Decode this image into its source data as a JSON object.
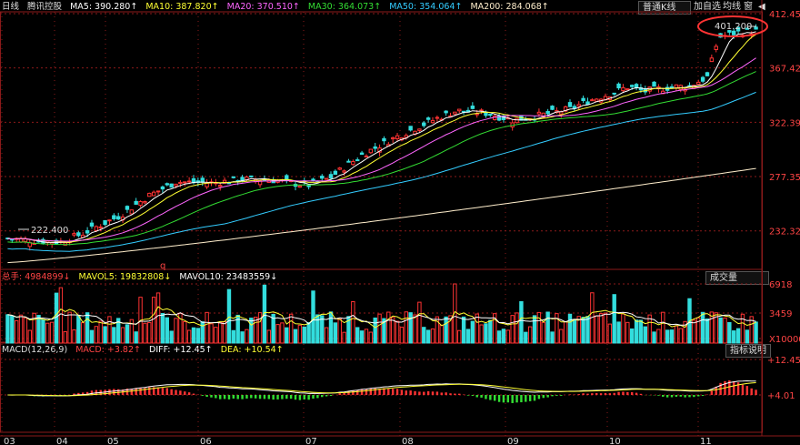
{
  "toolbar": {
    "period": "日线",
    "stock": "腾讯控股",
    "chart_type_button": "普通K线",
    "add_button": "加自选",
    "ma_button": "均线",
    "window_button": "窗",
    "nav_arrow": "◀"
  },
  "main_indicators": [
    {
      "label": "MA5: 390.280↑",
      "color": "#ffffff"
    },
    {
      "label": "MA10: 387.820↑",
      "color": "#ffff33"
    },
    {
      "label": "MA20: 370.510↑",
      "color": "#ff66ff"
    },
    {
      "label": "MA30: 364.073↑",
      "color": "#33dd33"
    },
    {
      "label": "MA50: 354.064↑",
      "color": "#33ccff"
    },
    {
      "label": "MA200: 284.068↑",
      "color": "#ffeecc"
    }
  ],
  "volume_panel": {
    "indicators": [
      {
        "label": "总手: 4984899↓",
        "color": "#ff4444"
      },
      {
        "label": "MAVOL5: 19832808↓",
        "color": "#ffff33"
      },
      {
        "label": "MAVOL10: 23483559↓",
        "color": "#ffffff"
      }
    ],
    "dropdown": "成交量",
    "axis_labels": [
      "6918",
      "3459",
      "X10000"
    ]
  },
  "macd_panel": {
    "indicators": [
      {
        "label": "MACD(12,26,9)",
        "color": "#dddddd"
      },
      {
        "label": "MACD: +3.82↑",
        "color": "#ff4444"
      },
      {
        "label": "DIFF: +12.45↑",
        "color": "#ffffff"
      },
      {
        "label": "DEA: +10.54↑",
        "color": "#ffff33"
      }
    ],
    "help_button": "指标说明",
    "axis_labels": [
      "+12.45",
      "+4.01"
    ]
  },
  "annotations": {
    "high_label": "401.200",
    "low_label": "222.400",
    "q_marker": "q"
  },
  "chart_data": {
    "type": "candlestick",
    "price_axis": {
      "ticks": [
        "412.459",
        "367.424",
        "322.390",
        "277.356",
        "232.322"
      ],
      "range": [
        200.4,
        412.459
      ]
    },
    "x_months": [
      "03",
      "04",
      "05",
      "06",
      "07",
      "08",
      "09",
      "10",
      "11"
    ],
    "high": 401.2,
    "low": 222.4,
    "ma200_range": [
      206,
      284.068
    ],
    "colors": {
      "up": "#ff3333",
      "down": "#33dddd",
      "grid": "#8b1a1a",
      "ma5": "#ffffff",
      "ma10": "#ffff33",
      "ma20": "#ff66ff",
      "ma30": "#33dd33",
      "ma50": "#33ccff",
      "ma200": "#ffeecc"
    }
  }
}
